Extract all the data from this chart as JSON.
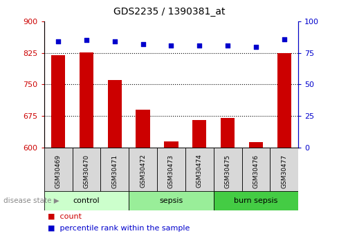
{
  "title": "GDS2235 / 1390381_at",
  "samples": [
    "GSM30469",
    "GSM30470",
    "GSM30471",
    "GSM30472",
    "GSM30473",
    "GSM30474",
    "GSM30475",
    "GSM30476",
    "GSM30477"
  ],
  "bar_values": [
    820,
    826,
    760,
    690,
    615,
    665,
    670,
    613,
    824
  ],
  "percentile_values": [
    84,
    85,
    84,
    82,
    81,
    81,
    81,
    80,
    86
  ],
  "bar_color": "#cc0000",
  "percentile_color": "#0000cc",
  "ylim_left": [
    600,
    900
  ],
  "ylim_right": [
    0,
    100
  ],
  "yticks_left": [
    600,
    675,
    750,
    825,
    900
  ],
  "yticks_right": [
    0,
    25,
    50,
    75,
    100
  ],
  "groups": [
    {
      "label": "control",
      "indices": [
        0,
        1,
        2
      ],
      "color": "#ccffcc"
    },
    {
      "label": "sepsis",
      "indices": [
        3,
        4,
        5
      ],
      "color": "#99ee99"
    },
    {
      "label": "burn sepsis",
      "indices": [
        6,
        7,
        8
      ],
      "color": "#44cc44"
    }
  ],
  "disease_state_label": "disease state",
  "legend_count_label": "count",
  "legend_percentile_label": "percentile rank within the sample",
  "left_axis_color": "#cc0000",
  "right_axis_color": "#0000cc",
  "bar_width": 0.5,
  "grid_ticks": [
    675,
    750,
    825
  ]
}
